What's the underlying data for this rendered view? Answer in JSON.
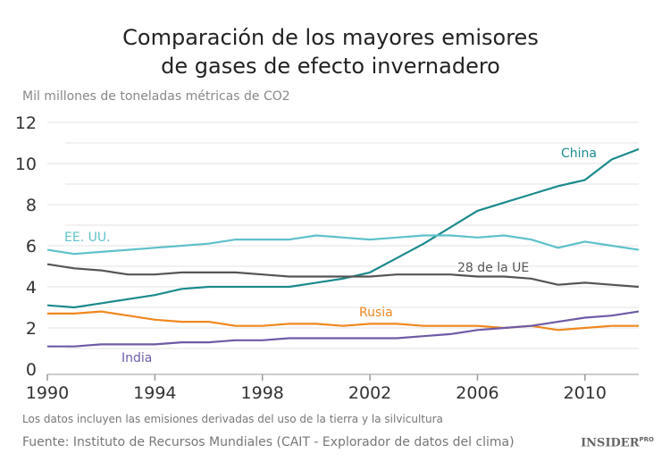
{
  "chart_data": {
    "type": "line",
    "title": "Comparación de los mayores emisores de gases de efecto invernadero",
    "title_lines": [
      "Comparación de los mayores emisores",
      "de gases de efecto invernadero"
    ],
    "ylabel": "Mil millones de toneladas métricas de CO2",
    "xlabel": "",
    "ylim": [
      0,
      12
    ],
    "xlim": [
      1990,
      2012
    ],
    "yticks": [
      "0",
      "2",
      "4",
      "6",
      "8",
      "10",
      "12"
    ],
    "xticks": [
      "1990",
      "1994",
      "1998",
      "2002",
      "2006",
      "2010"
    ],
    "grid": true,
    "x": [
      1990,
      1991,
      1992,
      1993,
      1994,
      1995,
      1996,
      1997,
      1998,
      1999,
      2000,
      2001,
      2002,
      2003,
      2004,
      2005,
      2006,
      2007,
      2008,
      2009,
      2010,
      2011,
      2012
    ],
    "series": [
      {
        "name": "China",
        "color": "#1b8a8c",
        "values": [
          3.1,
          3.0,
          3.2,
          3.4,
          3.6,
          3.9,
          4.0,
          4.0,
          4.0,
          4.0,
          4.2,
          4.4,
          4.7,
          5.4,
          6.1,
          6.9,
          7.7,
          8.1,
          8.5,
          8.9,
          9.2,
          10.2,
          10.7
        ]
      },
      {
        "name": "EE. UU.",
        "color": "#5ec1c9",
        "values": [
          5.8,
          5.6,
          5.7,
          5.8,
          5.9,
          6.0,
          6.1,
          6.3,
          6.3,
          6.3,
          6.5,
          6.4,
          6.3,
          6.4,
          6.5,
          6.5,
          6.4,
          6.5,
          6.3,
          5.9,
          6.2,
          6.0,
          5.8
        ]
      },
      {
        "name": "28 de la UE",
        "color": "#555555",
        "values": [
          5.1,
          4.9,
          4.8,
          4.6,
          4.6,
          4.7,
          4.7,
          4.7,
          4.6,
          4.5,
          4.5,
          4.5,
          4.5,
          4.6,
          4.6,
          4.6,
          4.5,
          4.5,
          4.4,
          4.1,
          4.2,
          4.1,
          4.0
        ]
      },
      {
        "name": "Rusia",
        "color": "#f0871f",
        "values": [
          2.7,
          2.7,
          2.8,
          2.6,
          2.4,
          2.3,
          2.3,
          2.1,
          2.1,
          2.2,
          2.2,
          2.1,
          2.2,
          2.2,
          2.1,
          2.1,
          2.1,
          2.0,
          2.1,
          1.9,
          2.0,
          2.1,
          2.1
        ]
      },
      {
        "name": "India",
        "color": "#6e5ba6",
        "values": [
          1.1,
          1.1,
          1.2,
          1.2,
          1.2,
          1.3,
          1.3,
          1.4,
          1.4,
          1.5,
          1.5,
          1.5,
          1.5,
          1.5,
          1.6,
          1.7,
          1.9,
          2.0,
          2.1,
          2.3,
          2.5,
          2.6,
          2.8
        ]
      }
    ],
    "note": "Los datos incluyen las emisiones derivadas del uso de la tierra y la silvicultura",
    "source": "Fuente: Instituto de Recursos Mundiales (CAIT - Explorador de datos del clima)"
  },
  "logo": {
    "text": "INSIDER",
    "sup": "PRO"
  }
}
